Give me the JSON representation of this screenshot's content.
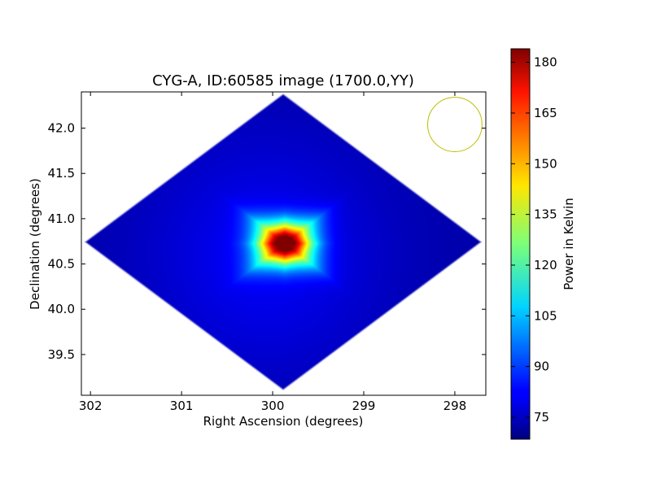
{
  "chart_data": {
    "type": "heatmap",
    "title": "CYG-A, ID:60585 image (1700.0,YY)",
    "xlabel": "Right Ascension (degrees)",
    "ylabel": "Declination (degrees)",
    "x_inverted": true,
    "xlim": [
      302.1,
      297.66
    ],
    "ylim": [
      39.05,
      42.4
    ],
    "xticks": [
      302,
      301,
      300,
      299,
      298
    ],
    "yticks": [
      39.5,
      40.0,
      40.5,
      41.0,
      41.5,
      42.0
    ],
    "xtick_labels": [
      "302",
      "301",
      "300",
      "299",
      "298"
    ],
    "ytick_labels": [
      "39.5",
      "40.0",
      "40.5",
      "41.0",
      "41.5",
      "42.0"
    ],
    "colormap": "jet",
    "colorbar": {
      "label": "Power in Kelvin",
      "min": 68.5,
      "max": 184,
      "ticks": [
        75,
        90,
        105,
        120,
        135,
        150,
        165,
        180
      ],
      "tick_labels": [
        "75",
        "90",
        "105",
        "120",
        "135",
        "150",
        "165",
        "180"
      ]
    },
    "source": {
      "ra": 299.87,
      "dec": 40.73,
      "peak": 184
    },
    "background_value": 73,
    "beam_circle": {
      "ra": 298.0,
      "dec": 42.04,
      "radius_deg": 0.3,
      "color": "#bfbf00"
    }
  }
}
